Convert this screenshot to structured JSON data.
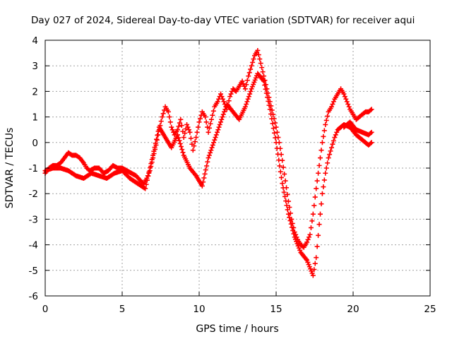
{
  "chart_data": {
    "type": "scatter",
    "title": "Day 027 of 2024, Sidereal Day-to-day VTEC variation (SDTVAR) for receiver aqui",
    "xlabel": "GPS time / hours",
    "ylabel": "SDTVAR / TECUs",
    "xlim": [
      0,
      25
    ],
    "ylim": [
      -6,
      4
    ],
    "x_ticks": [
      0,
      5,
      10,
      15,
      20,
      25
    ],
    "y_ticks": [
      -6,
      -5,
      -4,
      -3,
      -2,
      -1,
      0,
      1,
      2,
      3,
      4
    ],
    "grid": true,
    "marker": "+",
    "series_color": "#ff0000",
    "series": [
      {
        "x": [
          0,
          0.25,
          0.5,
          0.75,
          1.0,
          1.25,
          1.5,
          1.75,
          2.0,
          2.25,
          2.5,
          2.7,
          2.9,
          3.2,
          3.5,
          3.8,
          4.1,
          4.4,
          4.7,
          5.0,
          5.3,
          5.6,
          5.9,
          6.2,
          6.4,
          6.6,
          6.8,
          7.0,
          7.2,
          7.4,
          7.6,
          7.8,
          8.0,
          8.2,
          8.4,
          8.6,
          8.8,
          9.0,
          9.2,
          9.4,
          9.6,
          9.8,
          10.0,
          10.2,
          10.4,
          10.6,
          10.8,
          11.0,
          11.2,
          11.4,
          11.6,
          11.8,
          12.0,
          12.2,
          12.4,
          12.6,
          12.8,
          13.0,
          13.2,
          13.4,
          13.6,
          13.8,
          14.0,
          14.2,
          14.4,
          14.6,
          14.8,
          15.0,
          15.2,
          15.4,
          15.6,
          15.8,
          16.0,
          16.2,
          16.4,
          16.6,
          16.8,
          17.0,
          17.2,
          17.4,
          17.6,
          17.8,
          18.0,
          18.2,
          18.4,
          18.6,
          18.8,
          19.0,
          19.2,
          19.4,
          19.6,
          19.8,
          20.0,
          20.2,
          20.4,
          20.6,
          20.8,
          21.0,
          21.2
        ],
        "y": [
          -1.2,
          -1.0,
          -0.9,
          -0.9,
          -0.8,
          -0.6,
          -0.4,
          -0.5,
          -0.5,
          -0.6,
          -0.8,
          -1.0,
          -1.1,
          -1.0,
          -1.0,
          -1.2,
          -1.1,
          -0.9,
          -1.0,
          -1.0,
          -1.1,
          -1.2,
          -1.3,
          -1.5,
          -1.6,
          -1.4,
          -1.1,
          -0.6,
          -0.1,
          0.5,
          1.0,
          1.4,
          1.2,
          0.6,
          0.3,
          0.5,
          0.9,
          0.2,
          0.7,
          0.4,
          -0.3,
          0.2,
          0.8,
          1.2,
          1.0,
          0.4,
          0.9,
          1.4,
          1.6,
          1.9,
          1.6,
          1.3,
          1.8,
          2.1,
          2.0,
          2.2,
          2.4,
          2.1,
          2.6,
          3.0,
          3.4,
          3.6,
          3.1,
          2.6,
          2.1,
          1.6,
          1.1,
          0.6,
          0.0,
          -0.7,
          -1.5,
          -2.3,
          -3.0,
          -3.5,
          -3.8,
          -4.0,
          -4.1,
          -3.9,
          -3.6,
          -2.8,
          -1.8,
          -0.9,
          0.0,
          0.7,
          1.2,
          1.4,
          1.7,
          1.9,
          2.1,
          1.9,
          1.6,
          1.3,
          1.1,
          0.9,
          1.0,
          1.1,
          1.2,
          1.2,
          1.3
        ]
      },
      {
        "x": [
          0,
          0.5,
          1.0,
          1.5,
          2.0,
          2.5,
          3.0,
          3.5,
          4.0,
          4.5,
          5.0,
          5.5,
          6.0,
          6.5,
          7.0,
          7.4,
          7.8,
          8.2,
          8.6,
          9.0,
          9.4,
          9.8,
          10.2,
          10.6,
          11.0,
          11.4,
          11.8,
          12.2,
          12.6,
          13.0,
          13.4,
          13.8,
          14.2,
          14.6,
          15.0,
          15.4,
          15.8,
          16.2,
          16.6,
          17.0,
          17.4,
          17.6,
          17.8,
          18.0,
          18.2,
          18.4,
          18.6,
          18.8,
          19.0,
          19.4,
          19.8,
          20.2,
          20.6,
          21.0,
          21.2
        ],
        "y": [
          -1.1,
          -1.0,
          -1.0,
          -1.1,
          -1.3,
          -1.4,
          -1.2,
          -1.3,
          -1.4,
          -1.2,
          -1.1,
          -1.4,
          -1.6,
          -1.8,
          -0.5,
          0.6,
          0.2,
          -0.2,
          0.3,
          -0.5,
          -1.0,
          -1.3,
          -1.7,
          -0.6,
          0.1,
          0.8,
          1.5,
          1.2,
          0.9,
          1.4,
          2.1,
          2.7,
          2.4,
          1.3,
          0.0,
          -1.6,
          -2.8,
          -3.7,
          -4.3,
          -4.6,
          -5.2,
          -4.5,
          -3.2,
          -2.0,
          -1.2,
          -0.6,
          -0.2,
          0.2,
          0.5,
          0.7,
          0.6,
          0.3,
          0.1,
          -0.1,
          0.0
        ]
      },
      {
        "x": [
          19.4,
          19.8,
          20.2,
          20.6,
          21.0,
          21.2
        ],
        "y": [
          0.6,
          0.8,
          0.5,
          0.4,
          0.3,
          0.4
        ]
      }
    ]
  }
}
